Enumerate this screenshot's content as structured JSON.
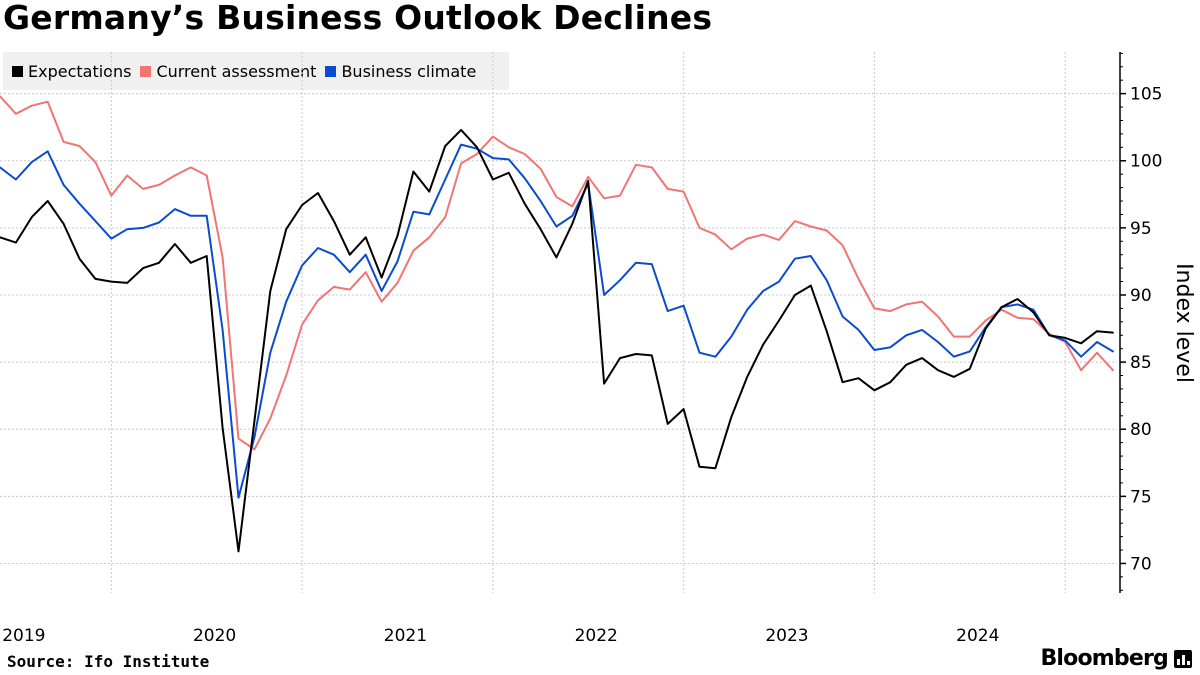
{
  "title": "Germany’s Business Outlook Declines",
  "source": "Source: Ifo Institute",
  "brand": "Bloomberg",
  "chart_data": {
    "type": "line",
    "ylabel": "Index level",
    "xlabel": "",
    "ylim": [
      67.8,
      108.1
    ],
    "yticks": [
      70,
      75,
      80,
      85,
      90,
      95,
      100,
      105
    ],
    "x_start": "2018-12",
    "x_end": "2024-09",
    "xticks": [
      {
        "label": "2019",
        "date": "2019-01"
      },
      {
        "label": "2020",
        "date": "2020-01"
      },
      {
        "label": "2021",
        "date": "2021-01"
      },
      {
        "label": "2022",
        "date": "2022-01"
      },
      {
        "label": "2023",
        "date": "2023-01"
      },
      {
        "label": "2024",
        "date": "2024-01"
      }
    ],
    "grid": true,
    "legend_position": "top-left",
    "axis_side": "right",
    "series": [
      {
        "name": "Expectations",
        "color": "#000000",
        "values": [
          94.3,
          93.9,
          95.8,
          97.0,
          95.3,
          92.7,
          91.2,
          91.0,
          90.9,
          92.0,
          92.4,
          93.8,
          92.4,
          92.9,
          80.1,
          70.9,
          80.6,
          90.3,
          94.9,
          96.7,
          97.6,
          95.5,
          93.0,
          94.3,
          91.3,
          94.4,
          99.2,
          97.7,
          101.1,
          102.3,
          101.0,
          98.6,
          99.1,
          96.8,
          94.9,
          92.8,
          95.3,
          98.5,
          83.4,
          85.3,
          85.6,
          85.5,
          80.4,
          81.5,
          77.2,
          77.1,
          80.9,
          83.9,
          86.3,
          88.1,
          90.0,
          90.7,
          87.3,
          83.5,
          83.8,
          82.9,
          83.5,
          84.8,
          85.3,
          84.4,
          83.9,
          84.5,
          87.5,
          89.1,
          89.7,
          88.7,
          87.0,
          86.8,
          86.4,
          87.3,
          87.2
        ],
        "dates_start": "2018-12"
      },
      {
        "name": "Current assessment",
        "color": "#f07573",
        "values": [
          104.8,
          103.5,
          104.1,
          104.4,
          101.4,
          101.1,
          99.9,
          97.4,
          98.9,
          97.9,
          98.2,
          98.9,
          99.5,
          98.9,
          92.8,
          79.3,
          78.5,
          80.8,
          84.0,
          87.8,
          89.6,
          90.6,
          90.4,
          91.7,
          89.5,
          90.9,
          93.3,
          94.3,
          95.8,
          99.8,
          100.5,
          101.8,
          101.0,
          100.5,
          99.4,
          97.3,
          96.6,
          98.8,
          97.2,
          97.4,
          99.7,
          99.5,
          97.9,
          97.7,
          95.0,
          94.5,
          93.4,
          94.2,
          94.5,
          94.1,
          95.5,
          95.1,
          94.8,
          93.7,
          91.2,
          89.0,
          88.8,
          89.3,
          89.5,
          88.4,
          86.9,
          86.9,
          88.1,
          88.9,
          88.3,
          88.2,
          87.1,
          86.5,
          84.4,
          85.7,
          84.4
        ],
        "dates_start": "2018-12"
      },
      {
        "name": "Business climate",
        "color": "#0b4cce",
        "values": [
          99.5,
          98.6,
          99.9,
          100.7,
          98.2,
          96.8,
          95.5,
          94.2,
          94.9,
          95.0,
          95.4,
          96.4,
          95.9,
          95.9,
          87.4,
          74.9,
          79.4,
          85.7,
          89.5,
          92.2,
          93.5,
          93.0,
          91.7,
          93.0,
          90.3,
          92.5,
          96.2,
          96.0,
          98.6,
          101.2,
          100.9,
          100.2,
          100.1,
          98.7,
          97.0,
          95.1,
          95.9,
          98.3,
          90.0,
          91.1,
          92.4,
          92.3,
          88.8,
          89.2,
          85.7,
          85.4,
          86.9,
          88.9,
          90.3,
          91.0,
          92.7,
          92.9,
          91.1,
          88.4,
          87.4,
          85.9,
          86.1,
          87.0,
          87.4,
          86.5,
          85.4,
          85.8,
          87.6,
          89.1,
          89.3,
          88.9,
          87.0,
          86.6,
          85.4,
          86.5,
          85.8
        ],
        "dates_start": "2018-12"
      }
    ]
  }
}
